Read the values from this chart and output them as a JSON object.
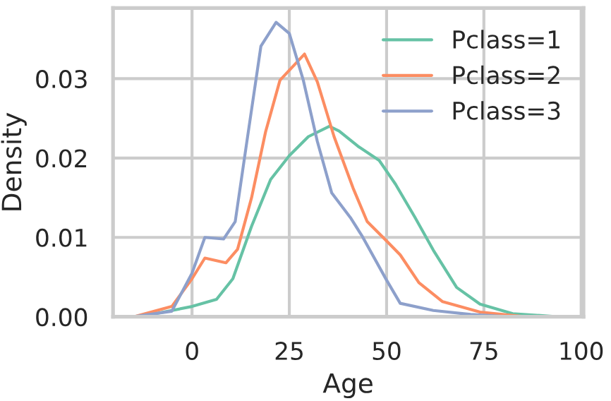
{
  "chart_data": {
    "type": "line",
    "xlabel": "Age",
    "ylabel": "Density",
    "xlim": [
      -20.3,
      100.6
    ],
    "xticks": [
      0,
      25,
      50,
      75,
      100
    ],
    "ylim": [
      0,
      0.0389
    ],
    "yticks": [
      {
        "value": 0,
        "label": "0.00"
      },
      {
        "value": 0.01,
        "label": "0.01"
      },
      {
        "value": 0.02,
        "label": "0.02"
      },
      {
        "value": 0.03,
        "label": "0.03"
      }
    ],
    "grid": true,
    "legend": "top right",
    "marker": "none",
    "line_style": "solid",
    "series": [
      {
        "name": "Pclass=1",
        "color": "#66c2a5",
        "x": [
          -13.6,
          0,
          6.3,
          10.5,
          15.3,
          20.2,
          25,
          29.9,
          35.3,
          37.8,
          42.6,
          48.1,
          52.3,
          57.2,
          62,
          68,
          74,
          82.4,
          94.5
        ],
        "values": [
          0,
          0.0013,
          0.0022,
          0.0048,
          0.0114,
          0.0173,
          0.0203,
          0.0227,
          0.024,
          0.0234,
          0.0215,
          0.0197,
          0.0167,
          0.0126,
          0.0084,
          0.0037,
          0.0016,
          0.0004,
          0
        ]
      },
      {
        "name": "Pclass=2",
        "color": "#fc8d62",
        "x": [
          -15,
          -5.2,
          0,
          3.3,
          8.7,
          11.7,
          15.3,
          18.9,
          22.6,
          28.9,
          32.2,
          36.5,
          41.4,
          45,
          49.9,
          53.5,
          58.3,
          64.4,
          74,
          86
        ],
        "values": [
          0,
          0.0013,
          0.0048,
          0.0074,
          0.0068,
          0.0085,
          0.015,
          0.0233,
          0.0298,
          0.0331,
          0.0296,
          0.0227,
          0.0162,
          0.012,
          0.0096,
          0.0078,
          0.0043,
          0.0019,
          0.0006,
          0
        ]
      },
      {
        "name": "Pclass=3",
        "color": "#8da0cb",
        "x": [
          -15.4,
          -5.2,
          0,
          3.3,
          8.1,
          11.1,
          14.1,
          17.7,
          21.6,
          25,
          28.6,
          32.2,
          35.9,
          40.7,
          43.8,
          49.9,
          53.5,
          62,
          71.6,
          82
        ],
        "values": [
          0,
          0.0007,
          0.0055,
          0.01,
          0.0098,
          0.012,
          0.0221,
          0.0341,
          0.0371,
          0.0357,
          0.0298,
          0.0221,
          0.0156,
          0.0125,
          0.0101,
          0.0047,
          0.0017,
          0.0008,
          0.0003,
          0
        ]
      }
    ]
  }
}
